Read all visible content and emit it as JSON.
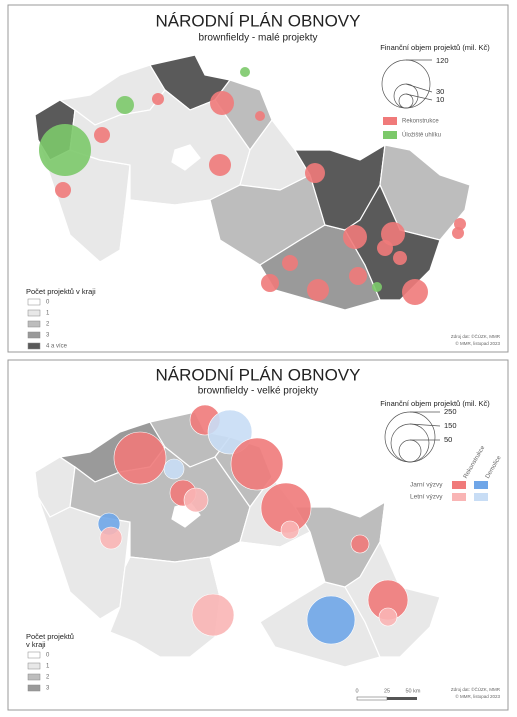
{
  "maps": [
    {
      "title": "NÁRODNÍ PLÁN OBNOVY",
      "subtitle": "brownfieldy - malé projekty",
      "size_legend": {
        "title": "Finanční objem projektů (mil. Kč)",
        "labels": [
          "120",
          "30",
          "10"
        ]
      },
      "color_legend": [
        "Rekonstrukce",
        "Úložiště uhlíku"
      ],
      "count_legend": {
        "title": "Počet projektů v kraji",
        "labels": [
          "0",
          "1",
          "2",
          "3",
          "4 a více"
        ]
      },
      "source": [
        "Zdroj dat: ©ČÚZK, MMR",
        "© MMR, listopad 2023"
      ]
    },
    {
      "title": "NÁRODNÍ PLÁN OBNOVY",
      "subtitle": "brownfieldy - velké projekty",
      "size_legend": {
        "title": "Finanční objem projektů (mil. Kč)",
        "labels": [
          "250",
          "150",
          "50"
        ]
      },
      "column_labels": [
        "Rekonstrukce",
        "Demolice"
      ],
      "row_labels": [
        "Jarní výzvy",
        "Letní výzvy"
      ],
      "count_legend": {
        "title": [
          "Počet projektů",
          "v kraji"
        ],
        "labels": [
          "0",
          "1",
          "2",
          "3"
        ]
      },
      "scale": [
        "0",
        "25",
        "50 km"
      ],
      "source": [
        "Zdroj dat: ©ČÚZK, MMR",
        "© MMR, listopad 2023"
      ]
    }
  ]
}
